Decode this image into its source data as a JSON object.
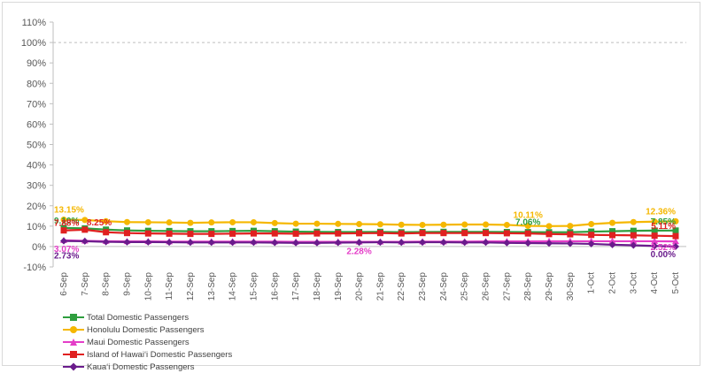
{
  "chart_data": {
    "type": "line",
    "title": "",
    "xlabel": "",
    "ylabel": "",
    "ylim": [
      -10,
      110
    ],
    "yticks": [
      "-10%",
      "0%",
      "10%",
      "20%",
      "30%",
      "40%",
      "50%",
      "60%",
      "70%",
      "80%",
      "90%",
      "100%",
      "110%"
    ],
    "reference_line": 100,
    "categories": [
      "6-Sep",
      "7-Sep",
      "8-Sep",
      "9-Sep",
      "10-Sep",
      "11-Sep",
      "12-Sep",
      "13-Sep",
      "14-Sep",
      "15-Sep",
      "16-Sep",
      "17-Sep",
      "18-Sep",
      "19-Sep",
      "20-Sep",
      "21-Sep",
      "22-Sep",
      "23-Sep",
      "24-Sep",
      "25-Sep",
      "26-Sep",
      "27-Sep",
      "28-Sep",
      "29-Sep",
      "30-Sep",
      "1-Oct",
      "2-Oct",
      "3-Oct",
      "4-Oct",
      "5-Oct"
    ],
    "legend_position": "bottom-left",
    "series": [
      {
        "name": "Total Domestic Passengers",
        "color": "#2e9e3e",
        "marker": "square",
        "values": [
          9.1,
          8.9,
          8.3,
          7.9,
          7.7,
          7.6,
          7.5,
          7.5,
          7.6,
          7.7,
          7.5,
          7.3,
          7.2,
          7.1,
          7.1,
          7.2,
          7.0,
          7.1,
          7.2,
          7.2,
          7.2,
          7.1,
          7.06,
          7.0,
          7.0,
          7.3,
          7.5,
          7.7,
          7.8,
          7.85
        ]
      },
      {
        "name": "Honolulu Domestic Passengers",
        "color": "#f5b700",
        "marker": "circle",
        "values": [
          13.15,
          13.0,
          12.4,
          12.0,
          11.9,
          11.8,
          11.6,
          11.8,
          11.9,
          11.9,
          11.5,
          11.2,
          11.2,
          11.1,
          11.0,
          10.9,
          10.7,
          10.6,
          10.7,
          10.8,
          10.8,
          10.6,
          10.11,
          10.0,
          10.1,
          11.0,
          11.6,
          12.0,
          12.2,
          12.36
        ]
      },
      {
        "name": "Maui Domestic Passengers",
        "color": "#e43ec8",
        "marker": "triangle",
        "values": [
          3.07,
          2.8,
          2.6,
          2.5,
          2.5,
          2.4,
          2.4,
          2.4,
          2.4,
          2.4,
          2.4,
          2.3,
          2.3,
          2.3,
          2.28,
          2.3,
          2.3,
          2.4,
          2.4,
          2.4,
          2.5,
          2.5,
          2.5,
          2.6,
          2.6,
          2.6,
          2.6,
          2.6,
          2.6,
          2.52
        ]
      },
      {
        "name": "Island of Hawai‘i Domestic Passengers",
        "color": "#e02020",
        "marker": "square",
        "values": [
          7.88,
          8.25,
          7.0,
          6.6,
          6.4,
          6.3,
          6.2,
          6.2,
          6.3,
          6.4,
          6.4,
          6.3,
          6.4,
          6.4,
          6.5,
          6.6,
          6.4,
          6.6,
          6.6,
          6.6,
          6.6,
          6.5,
          6.4,
          6.1,
          6.0,
          5.7,
          5.6,
          5.5,
          5.3,
          5.11
        ]
      },
      {
        "name": "Kaua‘i Domestic Passengers",
        "color": "#6a1b8c",
        "marker": "diamond",
        "values": [
          2.73,
          2.6,
          2.3,
          2.2,
          2.2,
          2.1,
          2.0,
          2.0,
          2.0,
          2.0,
          1.9,
          1.8,
          1.8,
          1.9,
          2.0,
          2.1,
          2.0,
          2.1,
          2.1,
          2.0,
          2.0,
          1.8,
          1.7,
          1.6,
          1.5,
          1.3,
          0.9,
          0.6,
          0.3,
          0.0
        ]
      }
    ],
    "data_labels": [
      {
        "series": 1,
        "index": 0,
        "text": "13.15%"
      },
      {
        "series": 0,
        "index": 0,
        "text": "9.10%"
      },
      {
        "series": 3,
        "index": 0,
        "text": "7.88%"
      },
      {
        "series": 3,
        "index": 1,
        "text": "8.25%"
      },
      {
        "series": 2,
        "index": 0,
        "text": "3.07%"
      },
      {
        "series": 4,
        "index": 0,
        "text": "2.73%"
      },
      {
        "series": 2,
        "index": 14,
        "text": "2.28%"
      },
      {
        "series": 1,
        "index": 22,
        "text": "10.11%"
      },
      {
        "series": 0,
        "index": 22,
        "text": "7.06%"
      },
      {
        "series": 1,
        "index": 29,
        "text": "12.36%"
      },
      {
        "series": 0,
        "index": 29,
        "text": "7.85%"
      },
      {
        "series": 3,
        "index": 29,
        "text": "5.11%"
      },
      {
        "series": 2,
        "index": 29,
        "text": "2.52%"
      },
      {
        "series": 4,
        "index": 29,
        "text": "0.00%"
      }
    ]
  }
}
